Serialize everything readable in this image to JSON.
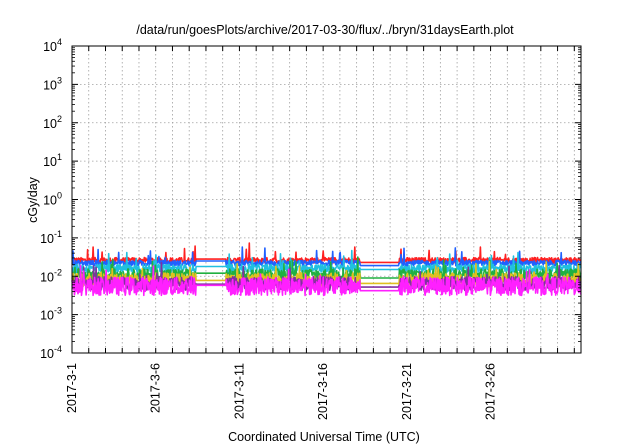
{
  "chart_data": {
    "type": "line",
    "title": "/data/run/goesPlots/archive/2017-03-30/flux/../bryn/31daysEarth.plot",
    "xlabel": "Coordinated Universal Time (UTC)",
    "ylabel": "cGy/day",
    "yscale": "log",
    "ylim": [
      0.0001,
      10000
    ],
    "xlim_days": [
      0,
      30.4
    ],
    "grid": true,
    "y_ticks": [
      {
        "value": 0.0001,
        "base": "10",
        "exp": "-4"
      },
      {
        "value": 0.001,
        "base": "10",
        "exp": "-3"
      },
      {
        "value": 0.01,
        "base": "10",
        "exp": "-2"
      },
      {
        "value": 0.1,
        "base": "10",
        "exp": "-1"
      },
      {
        "value": 1,
        "base": "10",
        "exp": "0"
      },
      {
        "value": 10,
        "base": "10",
        "exp": "1"
      },
      {
        "value": 100,
        "base": "10",
        "exp": "2"
      },
      {
        "value": 1000,
        "base": "10",
        "exp": "3"
      },
      {
        "value": 10000,
        "base": "10",
        "exp": "4"
      }
    ],
    "x_ticks": [
      {
        "day": 0,
        "label": "2017-3-1"
      },
      {
        "day": 5,
        "label": "2017-3-6"
      },
      {
        "day": 10,
        "label": "2017-3-11"
      },
      {
        "day": 15,
        "label": "2017-3-16"
      },
      {
        "day": 20,
        "label": "2017-3-21"
      },
      {
        "day": 25,
        "label": "2017-3-26"
      }
    ],
    "data_gaps_days": [
      [
        7.4,
        9.2
      ],
      [
        17.2,
        19.5
      ]
    ],
    "series": [
      {
        "name": "red",
        "color": "#ff2020",
        "base": 0.026,
        "spread": 0.12,
        "gap_values": [
          0.028,
          0.023
        ]
      },
      {
        "name": "blue",
        "color": "#2060ff",
        "base": 0.022,
        "spread": 0.12,
        "gap_values": [
          0.025,
          0.019
        ]
      },
      {
        "name": "cyan",
        "color": "#20c0e0",
        "base": 0.016,
        "spread": 0.18,
        "gap_values": [
          0.018,
          0.015
        ]
      },
      {
        "name": "green",
        "color": "#20b040",
        "base": 0.011,
        "spread": 0.25,
        "gap_values": [
          0.012,
          0.009
        ]
      },
      {
        "name": "yellow",
        "color": "#e0c020",
        "base": 0.008,
        "spread": 0.3,
        "gap_values": [
          0.0078,
          0.0065
        ]
      },
      {
        "name": "purple",
        "color": "#8030a0",
        "base": 0.0065,
        "spread": 0.3,
        "gap_values": [
          0.0062,
          0.0052
        ]
      },
      {
        "name": "magenta",
        "color": "#ff20ff",
        "base": 0.0055,
        "spread": 0.4,
        "gap_values": [
          0.0058,
          0.0042
        ]
      }
    ]
  }
}
